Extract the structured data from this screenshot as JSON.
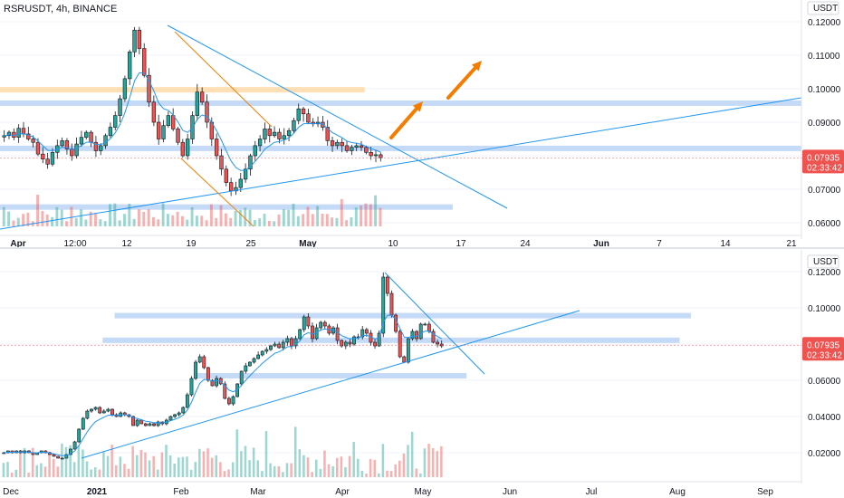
{
  "header": {
    "title": "RSRUSDT, 4h, BINANCE"
  },
  "colors": {
    "bull": "#26a69a",
    "bear": "#ef5350",
    "ma": "#2196f3",
    "zone_blue": "#bbd3f4",
    "zone_orange": "#ffd9a8",
    "arrow": "#f57c00",
    "price_tag": "#ef5350",
    "axis_text": "#131722"
  },
  "chart_data": [
    {
      "type": "candlestick",
      "title": "RSRUSDT, 4h, BINANCE",
      "unit_label": "USDT",
      "y_ticks": [
        "0.12000",
        "0.11000",
        "0.10000",
        "0.09000",
        "0.08000",
        "0.07000",
        "0.06000"
      ],
      "ylim": [
        0.0575,
        0.124
      ],
      "x_tick_labels": [
        "Apr",
        "12:00",
        "12",
        "19",
        "25",
        "May",
        "10",
        "17",
        "24",
        "Jun",
        "7",
        "14",
        "21"
      ],
      "x_bold_ticks": [
        "Apr",
        "May",
        "Jun"
      ],
      "last_price": "0.07935",
      "countdown": "02:33:42",
      "close_series": [
        0.086,
        0.087,
        0.0855,
        0.0882,
        0.0865,
        0.085,
        0.084,
        0.0805,
        0.079,
        0.0775,
        0.081,
        0.083,
        0.0845,
        0.082,
        0.08,
        0.0835,
        0.0855,
        0.087,
        0.084,
        0.0815,
        0.083,
        0.086,
        0.0885,
        0.092,
        0.097,
        0.103,
        0.111,
        0.1175,
        0.112,
        0.104,
        0.096,
        0.09,
        0.085,
        0.089,
        0.092,
        0.088,
        0.084,
        0.08,
        0.085,
        0.092,
        0.099,
        0.096,
        0.09,
        0.085,
        0.08,
        0.076,
        0.072,
        0.0695,
        0.0705,
        0.073,
        0.076,
        0.08,
        0.083,
        0.085,
        0.088,
        0.086,
        0.087,
        0.085,
        0.086,
        0.0875,
        0.0905,
        0.094,
        0.0925,
        0.09,
        0.0895,
        0.09,
        0.0885,
        0.0845,
        0.083,
        0.084,
        0.083,
        0.0815,
        0.0825,
        0.083,
        0.0825,
        0.081,
        0.08,
        0.0803,
        0.0794
      ],
      "zones": [
        {
          "color": "orange",
          "y_from": 0.0995,
          "y_to": 0.1005,
          "x_from": 0.0,
          "x_to": 0.455
        },
        {
          "color": "blue",
          "y_from": 0.095,
          "y_to": 0.0965,
          "x_from": 0.0,
          "x_to": 1.0
        },
        {
          "color": "blue",
          "y_from": 0.0815,
          "y_to": 0.083,
          "x_from": 0.0,
          "x_to": 1.0
        },
        {
          "color": "blue",
          "y_from": 0.064,
          "y_to": 0.0655,
          "x_from": 0.0,
          "x_to": 0.565
        }
      ]
    },
    {
      "type": "candlestick",
      "unit_label": "USDT",
      "y_ticks": [
        "0.12000",
        "0.10000",
        "0.08000",
        "0.06000",
        "0.04000",
        "0.02000"
      ],
      "ylim": [
        0.0035,
        0.1295
      ],
      "x_tick_labels": [
        "Dec",
        "2021",
        "Feb",
        "Mar",
        "Apr",
        "May",
        "Jun",
        "Jul",
        "Aug",
        "Sep"
      ],
      "x_bold_ticks": [
        "2021"
      ],
      "last_price": "0.07935",
      "countdown": "02:33:42",
      "close_series": [
        0.02,
        0.021,
        0.02,
        0.021,
        0.02,
        0.021,
        0.02,
        0.019,
        0.02,
        0.021,
        0.02,
        0.019,
        0.018,
        0.017,
        0.017,
        0.019,
        0.022,
        0.026,
        0.033,
        0.039,
        0.043,
        0.044,
        0.045,
        0.042,
        0.043,
        0.044,
        0.041,
        0.04,
        0.042,
        0.041,
        0.04,
        0.035,
        0.038,
        0.036,
        0.035,
        0.036,
        0.035,
        0.037,
        0.036,
        0.038,
        0.04,
        0.041,
        0.042,
        0.045,
        0.052,
        0.061,
        0.07,
        0.073,
        0.067,
        0.06,
        0.057,
        0.061,
        0.058,
        0.05,
        0.047,
        0.051,
        0.058,
        0.065,
        0.068,
        0.07,
        0.072,
        0.074,
        0.076,
        0.077,
        0.079,
        0.08,
        0.078,
        0.081,
        0.083,
        0.079,
        0.083,
        0.088,
        0.095,
        0.09,
        0.083,
        0.089,
        0.092,
        0.09,
        0.086,
        0.089,
        0.082,
        0.079,
        0.081,
        0.08,
        0.084,
        0.084,
        0.088,
        0.086,
        0.081,
        0.079,
        0.086,
        0.117,
        0.108,
        0.096,
        0.087,
        0.073,
        0.07,
        0.083,
        0.087,
        0.083,
        0.091,
        0.091,
        0.087,
        0.081,
        0.08,
        0.079
      ],
      "zones": [
        {
          "color": "blue",
          "y_from": 0.0957,
          "y_to": 0.0972,
          "x_from": 0.143,
          "x_to": 0.862
        },
        {
          "color": "blue",
          "y_from": 0.0821,
          "y_to": 0.0836,
          "x_from": 0.128,
          "x_to": 0.848
        },
        {
          "color": "blue",
          "y_from": 0.0625,
          "y_to": 0.064,
          "x_from": 0.242,
          "x_to": 0.582
        }
      ]
    }
  ]
}
